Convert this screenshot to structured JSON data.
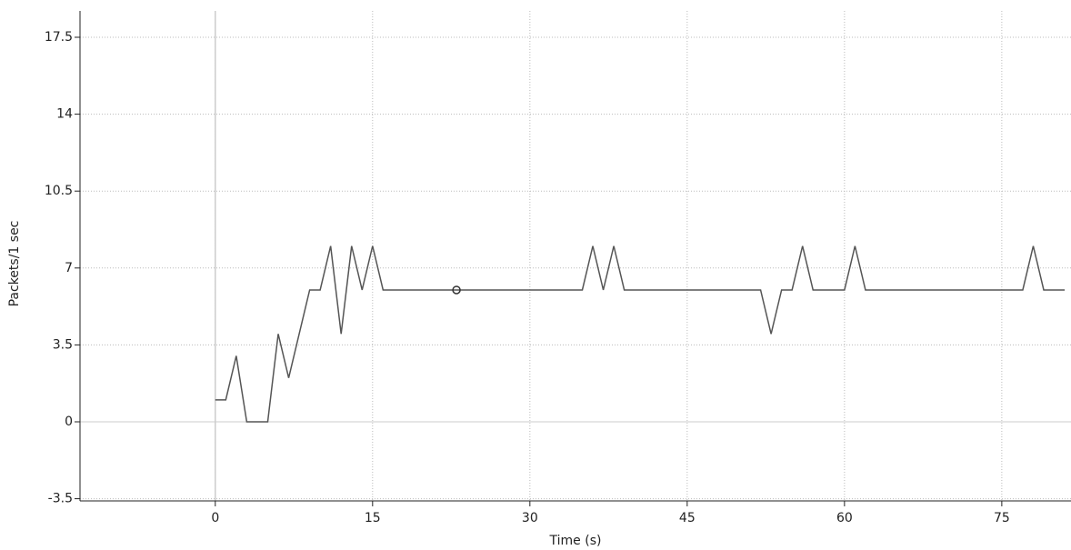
{
  "chart_data": {
    "type": "line",
    "xlabel": "Time (s)",
    "ylabel": "Packets/1 sec",
    "x": [
      0,
      1,
      2,
      3,
      4,
      5,
      6,
      7,
      8,
      9,
      10,
      11,
      12,
      13,
      14,
      15,
      16,
      17,
      18,
      19,
      20,
      21,
      22,
      23,
      24,
      25,
      26,
      27,
      28,
      29,
      30,
      31,
      32,
      33,
      34,
      35,
      36,
      37,
      38,
      39,
      40,
      41,
      42,
      43,
      44,
      45,
      46,
      47,
      48,
      49,
      50,
      51,
      52,
      53,
      54,
      55,
      56,
      57,
      58,
      59,
      60,
      61,
      62,
      63,
      64,
      65,
      66,
      67,
      68,
      69,
      70,
      71,
      72,
      73,
      74,
      75,
      76,
      77,
      78,
      79,
      80,
      81
    ],
    "values": [
      1,
      1,
      3,
      0,
      0,
      0,
      4,
      2,
      4,
      6,
      6,
      8,
      4,
      8,
      6,
      8,
      6,
      6,
      6,
      6,
      6,
      6,
      6,
      6,
      6,
      6,
      6,
      6,
      6,
      6,
      6,
      6,
      6,
      6,
      6,
      6,
      8,
      6,
      8,
      6,
      6,
      6,
      6,
      6,
      6,
      6,
      6,
      6,
      6,
      6,
      6,
      6,
      6,
      4,
      6,
      6,
      8,
      6,
      6,
      6,
      6,
      8,
      6,
      6,
      6,
      6,
      6,
      6,
      6,
      6,
      6,
      6,
      6,
      6,
      6,
      6,
      6,
      6,
      8,
      6,
      6,
      6
    ],
    "color": "#555555",
    "xlim": [
      -12.9,
      81.6
    ],
    "ylim": [
      -3.6,
      18.7
    ],
    "xticks": [
      0,
      15,
      30,
      45,
      60,
      75
    ],
    "yticks": [
      -3.5,
      0,
      3.5,
      7,
      10.5,
      14,
      17.5
    ],
    "grid": true
  }
}
